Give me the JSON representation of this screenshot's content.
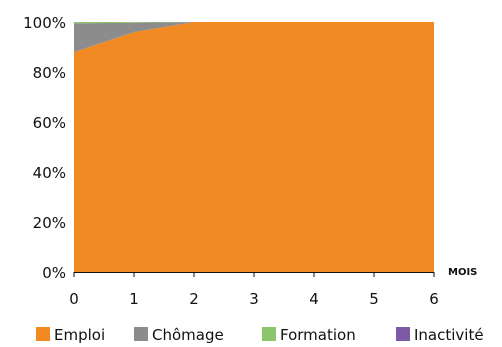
{
  "chart_data": {
    "type": "area",
    "stacked": true,
    "percent": true,
    "x": [
      0,
      1,
      2,
      3,
      4,
      5,
      6
    ],
    "xlabel": "MOIS",
    "ylabel": "",
    "ylim": [
      0,
      100
    ],
    "yticks": [
      "0%",
      "20%",
      "40%",
      "60%",
      "80%",
      "100%"
    ],
    "xticks": [
      "0",
      "1",
      "2",
      "3",
      "4",
      "5",
      "6"
    ],
    "grid": false,
    "legend_position": "bottom",
    "series": [
      {
        "name": "Emploi",
        "color": "#f28a24",
        "values": [
          88,
          96,
          100,
          100,
          100,
          100,
          100
        ]
      },
      {
        "name": "Chômage",
        "color": "#8c8c8c",
        "values": [
          11.5,
          3.7,
          0,
          0,
          0,
          0,
          0
        ]
      },
      {
        "name": "Formation",
        "color": "#8cc56b",
        "values": [
          0.5,
          0.3,
          0,
          0,
          0,
          0,
          0
        ]
      },
      {
        "name": "Inactivité",
        "color": "#7d5aa6",
        "values": [
          0,
          0,
          0,
          0,
          0,
          0,
          0
        ]
      }
    ]
  }
}
